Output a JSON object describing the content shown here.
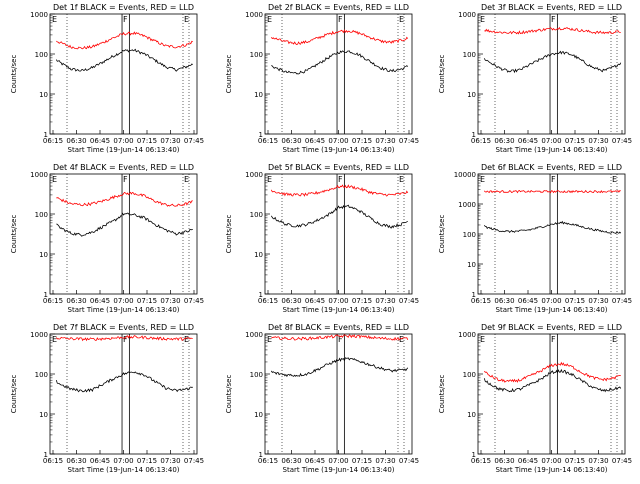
{
  "shared": {
    "x_ticks": [
      "06:15",
      "06:30",
      "06:45",
      "07:00",
      "07:15",
      "07:30",
      "07:45"
    ],
    "y_ticks": [
      "1",
      "10",
      "100",
      "1000"
    ],
    "y_ticks_wide": [
      "1",
      "10",
      "100",
      "1000",
      "10000"
    ],
    "xlabel": "Start Time (19-Jun-14 06:13:40)",
    "ylabel": "Counts/sec",
    "colors": {
      "events": "#000000",
      "lld": "#ff0000"
    },
    "markers": {
      "E_left": "E",
      "F": "F",
      "E_right": "E"
    }
  },
  "chart_data": [
    {
      "type": "line",
      "title": "Det 1f BLACK = Events, RED = LLD",
      "ylim": [
        1,
        1000
      ],
      "log_y": true,
      "series": [
        {
          "name": "Events",
          "values": [
            90,
            60,
            42,
            38,
            45,
            62,
            88,
            120,
            125,
            100,
            70,
            48,
            40,
            48,
            62
          ]
        },
        {
          "name": "LLD",
          "values": [
            260,
            190,
            150,
            140,
            150,
            190,
            250,
            320,
            330,
            280,
            210,
            160,
            150,
            170,
            230
          ]
        }
      ]
    },
    {
      "type": "line",
      "title": "Det 2f BLACK = Events, RED = LLD",
      "ylim": [
        1,
        1000
      ],
      "log_y": true,
      "series": [
        {
          "name": "Events",
          "values": [
            60,
            45,
            35,
            33,
            38,
            55,
            80,
            110,
            118,
            95,
            65,
            45,
            37,
            42,
            55
          ]
        },
        {
          "name": "LLD",
          "values": [
            300,
            240,
            200,
            185,
            200,
            250,
            310,
            370,
            380,
            330,
            260,
            210,
            195,
            220,
            270
          ]
        }
      ]
    },
    {
      "type": "line",
      "title": "Det 3f BLACK = Events, RED = LLD",
      "ylim": [
        1,
        1000
      ],
      "log_y": true,
      "series": [
        {
          "name": "Events",
          "values": [
            95,
            65,
            45,
            36,
            40,
            55,
            75,
            100,
            110,
            95,
            65,
            45,
            38,
            48,
            70
          ]
        },
        {
          "name": "LLD",
          "values": [
            430,
            380,
            350,
            340,
            345,
            370,
            400,
            430,
            440,
            420,
            380,
            350,
            340,
            350,
            380
          ]
        }
      ]
    },
    {
      "type": "line",
      "title": "Det 4f BLACK = Events, RED = LLD",
      "ylim": [
        1,
        1000
      ],
      "log_y": true,
      "series": [
        {
          "name": "Events",
          "values": [
            70,
            45,
            33,
            30,
            35,
            48,
            65,
            100,
            95,
            80,
            55,
            40,
            32,
            36,
            45
          ]
        },
        {
          "name": "LLD",
          "values": [
            300,
            230,
            180,
            170,
            180,
            210,
            260,
            320,
            330,
            280,
            210,
            170,
            160,
            180,
            220
          ]
        }
      ]
    },
    {
      "type": "line",
      "title": "Det 5f BLACK = Events, RED = LLD",
      "ylim": [
        1,
        1000
      ],
      "log_y": true,
      "series": [
        {
          "name": "Events",
          "values": [
            110,
            75,
            55,
            50,
            55,
            70,
            95,
            145,
            155,
            120,
            80,
            55,
            48,
            55,
            75
          ]
        },
        {
          "name": "LLD",
          "values": [
            460,
            360,
            310,
            300,
            305,
            340,
            400,
            480,
            490,
            430,
            350,
            310,
            300,
            320,
            380
          ]
        }
      ]
    },
    {
      "type": "line",
      "title": "Det 6f BLACK = Events, RED = LLD",
      "ylim": [
        1,
        10000
      ],
      "log_y": true,
      "series": [
        {
          "name": "Events",
          "values": [
            220,
            160,
            130,
            120,
            125,
            140,
            170,
            210,
            240,
            210,
            170,
            140,
            120,
            110,
            115
          ]
        },
        {
          "name": "LLD",
          "values": [
            2600,
            2600,
            2600,
            2600,
            2600,
            2600,
            2600,
            2600,
            2600,
            2600,
            2600,
            2600,
            2600,
            2600,
            2600
          ]
        }
      ]
    },
    {
      "type": "line",
      "title": "Det 7f BLACK = Events, RED = LLD",
      "ylim": [
        1,
        1000
      ],
      "log_y": true,
      "series": [
        {
          "name": "Events",
          "values": [
            85,
            55,
            42,
            38,
            40,
            55,
            75,
            100,
            115,
            95,
            65,
            45,
            38,
            42,
            50
          ]
        },
        {
          "name": "LLD",
          "values": [
            850,
            780,
            760,
            750,
            740,
            760,
            790,
            830,
            840,
            820,
            780,
            760,
            750,
            760,
            780
          ]
        }
      ]
    },
    {
      "type": "line",
      "title": "Det 8f BLACK = Events, RED = LLD",
      "ylim": [
        1,
        1000
      ],
      "log_y": true,
      "series": [
        {
          "name": "Events",
          "values": [
            130,
            105,
            95,
            92,
            100,
            130,
            175,
            225,
            240,
            210,
            170,
            140,
            120,
            125,
            140
          ]
        },
        {
          "name": "LLD",
          "values": [
            860,
            800,
            770,
            760,
            770,
            800,
            840,
            880,
            890,
            870,
            820,
            780,
            760,
            760,
            780
          ]
        }
      ]
    },
    {
      "type": "line",
      "title": "Det 9f BLACK = Events, RED = LLD",
      "ylim": [
        1,
        1000
      ],
      "log_y": true,
      "series": [
        {
          "name": "Events",
          "values": [
            95,
            60,
            42,
            38,
            42,
            55,
            75,
            110,
            120,
            95,
            65,
            45,
            38,
            42,
            50
          ]
        },
        {
          "name": "LLD",
          "values": [
            150,
            95,
            70,
            65,
            70,
            90,
            120,
            165,
            180,
            150,
            105,
            80,
            72,
            80,
            105
          ]
        }
      ]
    }
  ]
}
